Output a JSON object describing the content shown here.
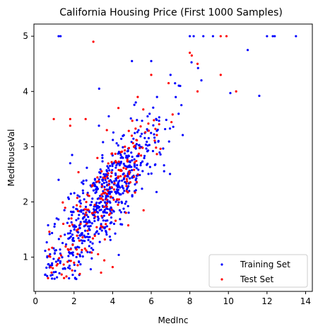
{
  "chart_data": {
    "type": "scatter",
    "title": "California Housing Price (First 1000 Samples)",
    "xlabel": "MedInc",
    "ylabel": "MedHouseVal",
    "xlim": [
      -0.08,
      14.35
    ],
    "ylim": [
      0.38,
      5.22
    ],
    "xticks": [
      0,
      2,
      4,
      6,
      8,
      10,
      12,
      14
    ],
    "yticks": [
      1,
      2,
      3,
      4,
      5
    ],
    "grid": false,
    "legend_position": "lower-right",
    "series": [
      {
        "name": "Training Set",
        "color": "#0000ff",
        "points": [
          [
            1.2,
            5.0
          ],
          [
            1.3,
            5.0
          ],
          [
            8.0,
            5.0
          ],
          [
            8.2,
            5.0
          ],
          [
            8.7,
            5.0
          ],
          [
            9.2,
            5.0
          ],
          [
            12.0,
            5.0
          ],
          [
            12.3,
            5.0
          ],
          [
            12.4,
            5.0
          ],
          [
            13.5,
            5.0
          ],
          [
            11.0,
            4.75
          ],
          [
            5.0,
            4.55
          ],
          [
            6.0,
            4.55
          ],
          [
            8.6,
            4.2
          ],
          [
            10.1,
            3.97
          ],
          [
            11.6,
            3.92
          ],
          [
            3.3,
            4.05
          ],
          [
            3.8,
            3.55
          ],
          [
            5.2,
            3.8
          ],
          [
            7.0,
            4.3
          ],
          [
            7.5,
            4.1
          ],
          [
            6.3,
            3.9
          ],
          [
            0.5,
            0.68
          ],
          [
            0.8,
            0.85
          ],
          [
            1.0,
            1.6
          ],
          [
            1.1,
            1.7
          ],
          [
            1.2,
            2.4
          ],
          [
            1.5,
            1.85
          ],
          [
            1.8,
            2.7
          ],
          [
            1.9,
            2.85
          ]
        ]
      },
      {
        "name": "Test Set",
        "color": "#ff0000",
        "points": [
          [
            3.0,
            4.9
          ],
          [
            9.6,
            5.0
          ],
          [
            9.9,
            5.0
          ],
          [
            8.0,
            4.7
          ],
          [
            8.1,
            4.65
          ],
          [
            8.4,
            4.5
          ],
          [
            9.6,
            4.3
          ],
          [
            10.4,
            4.0
          ],
          [
            6.0,
            4.3
          ],
          [
            6.9,
            4.15
          ],
          [
            8.4,
            4.0
          ],
          [
            5.3,
            3.9
          ],
          [
            0.95,
            3.5
          ],
          [
            1.8,
            3.5
          ],
          [
            1.8,
            3.38
          ],
          [
            2.6,
            3.5
          ],
          [
            3.7,
            3.3
          ],
          [
            4.3,
            3.7
          ],
          [
            0.9,
            0.8
          ],
          [
            1.1,
            0.85
          ],
          [
            2.0,
            0.9
          ],
          [
            3.4,
            0.72
          ],
          [
            4.0,
            0.82
          ]
        ]
      }
    ]
  }
}
